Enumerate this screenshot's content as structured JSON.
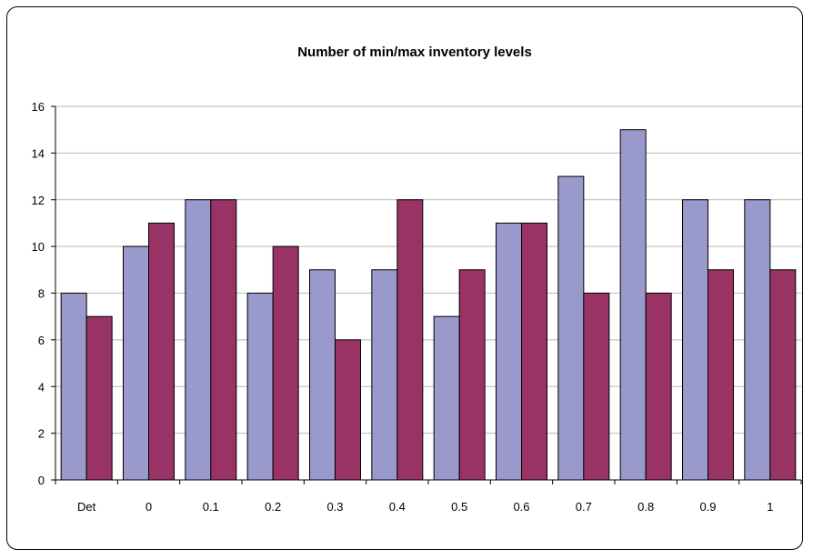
{
  "chart_data": {
    "type": "bar",
    "title": "Number of min/max inventory levels",
    "xlabel": "",
    "ylabel": "",
    "categories": [
      "Det",
      "0",
      "0.1",
      "0.2",
      "0.3",
      "0.4",
      "0.5",
      "0.6",
      "0.7",
      "0.8",
      "0.9",
      "1"
    ],
    "series": [
      {
        "values": [
          8,
          10,
          12,
          8,
          9,
          9,
          7,
          11,
          13,
          15,
          12,
          12
        ],
        "color": "#9999cc"
      },
      {
        "values": [
          7,
          11,
          12,
          10,
          6,
          12,
          9,
          11,
          8,
          8,
          9,
          9
        ],
        "color": "#993366"
      }
    ],
    "ylim": [
      0,
      16
    ],
    "yticks": [
      0,
      2,
      4,
      6,
      8,
      10,
      12,
      14,
      16
    ],
    "ytick_labels": [
      "0",
      "2",
      "4",
      "6",
      "8",
      "10",
      "12",
      "14",
      "16"
    ],
    "grid": true,
    "legend": "none"
  }
}
